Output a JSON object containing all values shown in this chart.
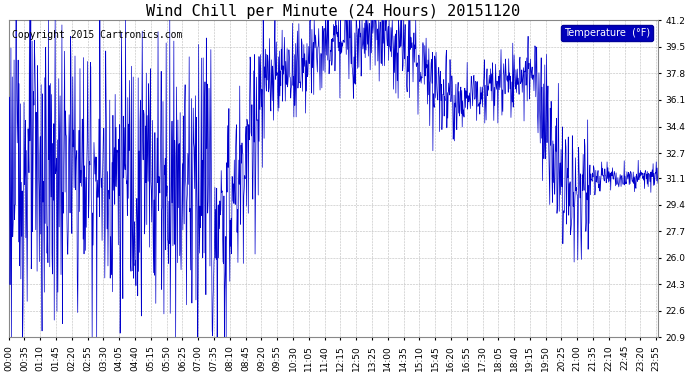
{
  "title": "Wind Chill per Minute (24 Hours) 20151120",
  "copyright": "Copyright 2015 Cartronics.com",
  "legend_label": "Temperature  (°F)",
  "legend_bg": "#0000bb",
  "legend_text_color": "#ffffff",
  "line_color": "#0000cc",
  "bg_color": "#ffffff",
  "plot_bg_color": "#ffffff",
  "grid_color": "#bbbbbb",
  "yticks": [
    20.9,
    22.6,
    24.3,
    26.0,
    27.7,
    29.4,
    31.1,
    32.7,
    34.4,
    36.1,
    37.8,
    39.5,
    41.2
  ],
  "ymin": 20.9,
  "ymax": 41.2,
  "title_fontsize": 11,
  "copyright_fontsize": 7,
  "tick_fontsize": 6.5,
  "figwidth": 6.9,
  "figheight": 3.75,
  "dpi": 100
}
